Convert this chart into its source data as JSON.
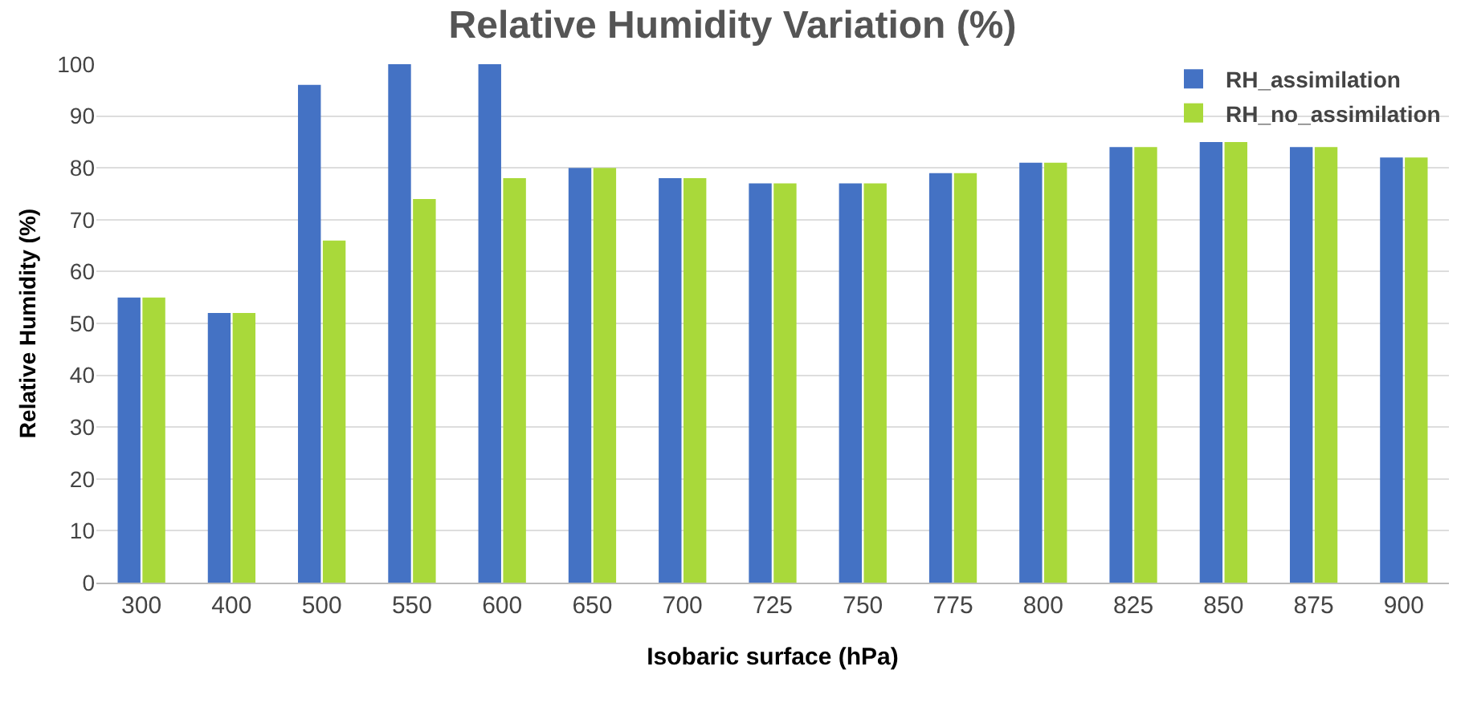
{
  "chart_data": {
    "type": "bar",
    "title": "Relative Humidity Variation (%)",
    "xlabel": "Isobaric surface (hPa)",
    "ylabel": "Relative Humidity (%)",
    "categories": [
      "300",
      "400",
      "500",
      "550",
      "600",
      "650",
      "700",
      "725",
      "750",
      "775",
      "800",
      "825",
      "850",
      "875",
      "900"
    ],
    "series": [
      {
        "name": "RH_assimilation",
        "color": "#4472c4",
        "values": [
          55,
          52,
          96,
          100,
          100,
          80,
          78,
          77,
          77,
          79,
          81,
          84,
          85,
          84,
          82
        ]
      },
      {
        "name": "RH_no_assimilation",
        "color": "#a9d93a",
        "values": [
          55,
          52,
          66,
          74,
          78,
          80,
          78,
          77,
          77,
          79,
          81,
          84,
          85,
          84,
          82
        ]
      }
    ],
    "ylim": [
      0,
      100
    ],
    "yticks": [
      0,
      10,
      20,
      30,
      40,
      50,
      60,
      70,
      80,
      90,
      100
    ],
    "grid": "y",
    "legend": "top right"
  }
}
